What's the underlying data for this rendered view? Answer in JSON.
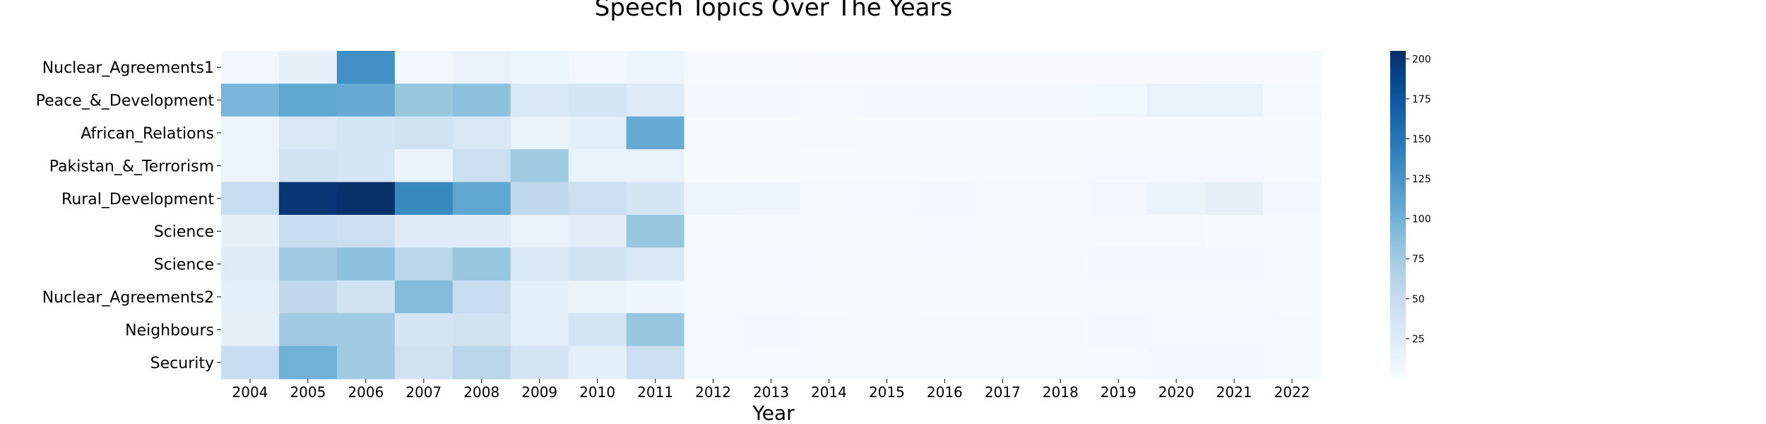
{
  "chart_data": {
    "type": "heatmap",
    "title": "Speech Topics Over The Years",
    "xlabel": "Year",
    "ylabel": "",
    "x": [
      "2004",
      "2005",
      "2006",
      "2007",
      "2008",
      "2009",
      "2010",
      "2011",
      "2012",
      "2013",
      "2014",
      "2015",
      "2016",
      "2017",
      "2018",
      "2019",
      "2020",
      "2021",
      "2022"
    ],
    "y": [
      "Nuclear_Agreements1",
      "Peace_&_Development",
      "African_Relations",
      "Pakistan_&_Terrorism",
      "Rural_Development",
      "Science",
      "Science",
      "Nuclear_Agreements2",
      "Neighbours",
      "Security"
    ],
    "values": [
      [
        6,
        18,
        130,
        6,
        14,
        10,
        6,
        10,
        2,
        2,
        1,
        1,
        1,
        1,
        1,
        1,
        1,
        1,
        1
      ],
      [
        95,
        110,
        105,
        80,
        85,
        30,
        35,
        25,
        5,
        5,
        4,
        5,
        5,
        5,
        5,
        7,
        14,
        15,
        4
      ],
      [
        10,
        30,
        35,
        40,
        30,
        14,
        20,
        105,
        2,
        2,
        3,
        2,
        2,
        2,
        2,
        2,
        2,
        2,
        2
      ],
      [
        10,
        40,
        35,
        12,
        45,
        75,
        15,
        14,
        2,
        2,
        2,
        2,
        2,
        2,
        2,
        4,
        4,
        4,
        2
      ],
      [
        50,
        200,
        205,
        135,
        110,
        55,
        45,
        35,
        10,
        9,
        3,
        4,
        5,
        3,
        3,
        6,
        12,
        18,
        5
      ],
      [
        18,
        50,
        45,
        25,
        25,
        14,
        22,
        80,
        3,
        2,
        2,
        2,
        4,
        2,
        2,
        3,
        3,
        2,
        2
      ],
      [
        25,
        75,
        85,
        60,
        80,
        30,
        40,
        30,
        4,
        4,
        3,
        3,
        3,
        3,
        3,
        5,
        5,
        5,
        3
      ],
      [
        20,
        55,
        40,
        90,
        50,
        20,
        12,
        8,
        3,
        3,
        2,
        3,
        2,
        2,
        2,
        3,
        3,
        3,
        2
      ],
      [
        18,
        75,
        75,
        35,
        40,
        20,
        35,
        80,
        4,
        5,
        3,
        3,
        3,
        3,
        3,
        5,
        4,
        4,
        3
      ],
      [
        50,
        100,
        75,
        40,
        60,
        35,
        20,
        45,
        4,
        4,
        3,
        3,
        3,
        3,
        3,
        4,
        5,
        5,
        3
      ]
    ],
    "colorbar": {
      "range": [
        0,
        205
      ],
      "ticks": [
        25,
        50,
        75,
        100,
        125,
        150,
        175,
        200
      ],
      "colormap": "Blues"
    }
  }
}
